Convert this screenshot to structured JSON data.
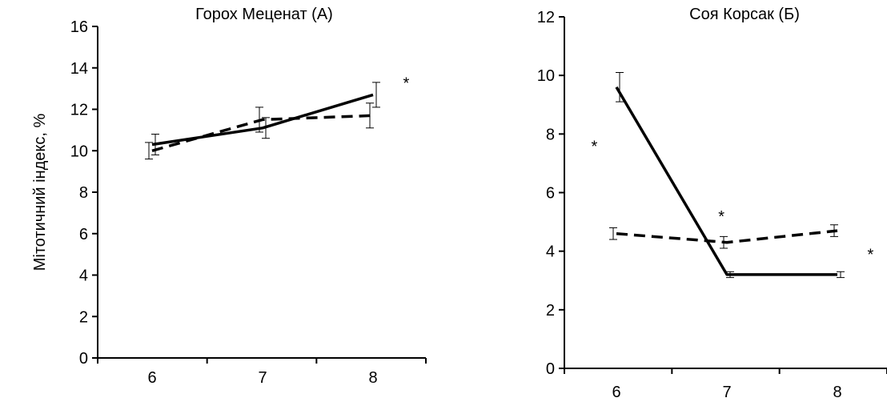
{
  "ylabel": "Мітотичний індекс, %",
  "chart_data": [
    {
      "type": "line",
      "title": "Горох Меценат (А)",
      "xlabel": "",
      "ylabel": "Мітотичний індекс, %",
      "categories": [
        "6",
        "7",
        "8"
      ],
      "ylim": [
        0,
        16
      ],
      "yticks": [
        "0",
        "2",
        "4",
        "6",
        "8",
        "10",
        "12",
        "14",
        "16"
      ],
      "grid": false,
      "series": [
        {
          "style": "solid",
          "values": [
            10.3,
            11.1,
            12.7
          ],
          "errors": [
            0.5,
            0.5,
            0.6
          ]
        },
        {
          "style": "dashed",
          "values": [
            10.0,
            11.5,
            11.7
          ],
          "errors": [
            0.4,
            0.6,
            0.6
          ]
        }
      ],
      "annotations": [
        {
          "text": "*",
          "x": 8.3,
          "y": 13.0
        }
      ]
    },
    {
      "type": "line",
      "title": "Соя Корсак (Б)",
      "xlabel": "",
      "ylabel": "",
      "categories": [
        "6",
        "7",
        "8"
      ],
      "ylim": [
        0,
        12
      ],
      "yticks": [
        "0",
        "2",
        "4",
        "6",
        "8",
        "10",
        "12"
      ],
      "grid": false,
      "series": [
        {
          "style": "solid",
          "values": [
            9.6,
            3.2,
            3.2
          ],
          "errors": [
            0.5,
            0.1,
            0.1
          ]
        },
        {
          "style": "dashed",
          "values": [
            4.6,
            4.3,
            4.7
          ],
          "errors": [
            0.2,
            0.2,
            0.2
          ]
        }
      ],
      "annotations": [
        {
          "text": "*",
          "x": 5.8,
          "y": 7.4
        },
        {
          "text": "*",
          "x": 6.95,
          "y": 5.0
        },
        {
          "text": "*",
          "x": 8.3,
          "y": 3.7
        }
      ]
    }
  ]
}
